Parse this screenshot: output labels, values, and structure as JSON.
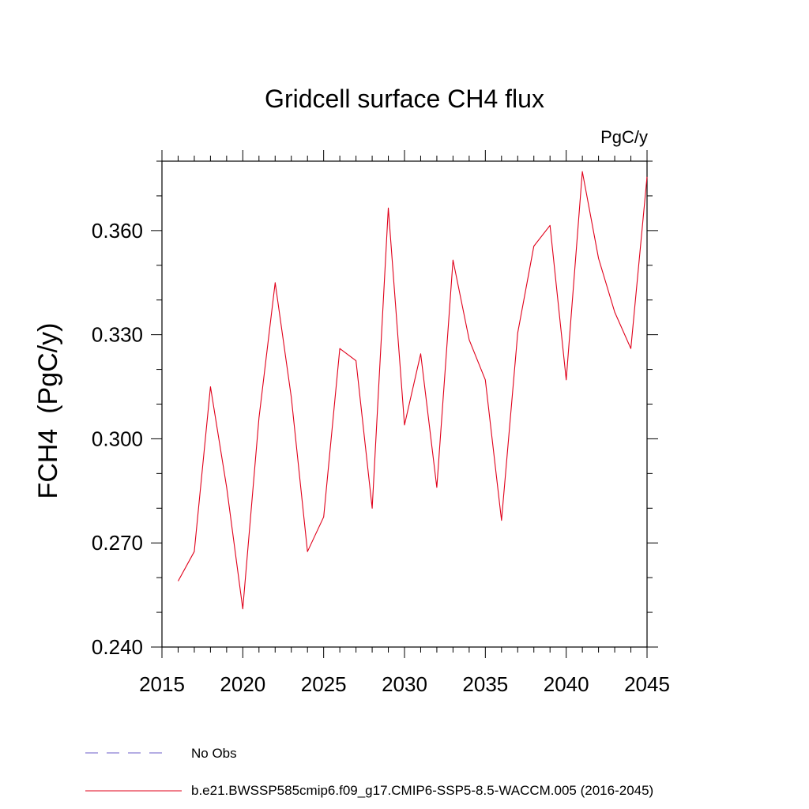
{
  "chart_data": {
    "type": "line",
    "title": "Gridcell surface CH4 flux",
    "units_label": "PgC/y",
    "ylabel": "FCH4  (PgC/y)",
    "xlabel": "",
    "xlim": [
      2015,
      2045
    ],
    "ylim": [
      0.24,
      0.38
    ],
    "x_ticks": [
      2015,
      2020,
      2025,
      2030,
      2035,
      2040,
      2045
    ],
    "x_tick_labels": [
      "2015",
      "2020",
      "2025",
      "2030",
      "2035",
      "2040",
      "2045"
    ],
    "y_ticks": [
      0.24,
      0.27,
      0.3,
      0.33,
      0.36
    ],
    "y_tick_labels": [
      "0.240",
      "0.270",
      "0.300",
      "0.330",
      "0.360"
    ],
    "grid": false,
    "series": [
      {
        "name": "b.e21.BWSSP585cmip6.f09_g17.CMIP6-SSP5-8.5-WACCM.005 (2016-2045)",
        "color": "#e0001a",
        "x": [
          2016,
          2017,
          2018,
          2019,
          2020,
          2021,
          2022,
          2023,
          2024,
          2025,
          2026,
          2027,
          2028,
          2029,
          2030,
          2031,
          2032,
          2033,
          2034,
          2035,
          2036,
          2037,
          2038,
          2039,
          2040,
          2041,
          2042,
          2043,
          2044,
          2045
        ],
        "values": [
          0.259,
          0.2675,
          0.315,
          0.286,
          0.251,
          0.306,
          0.345,
          0.312,
          0.2675,
          0.2775,
          0.326,
          0.3225,
          0.28,
          0.3665,
          0.304,
          0.3245,
          0.286,
          0.3515,
          0.3285,
          0.317,
          0.2765,
          0.3305,
          0.3555,
          0.3615,
          0.317,
          0.377,
          0.352,
          0.3365,
          0.326,
          0.3755
        ]
      }
    ],
    "legend": [
      {
        "label": "No Obs",
        "style": "dashed",
        "color": "#6b5cc8"
      },
      {
        "label": "b.e21.BWSSP585cmip6.f09_g17.CMIP6-SSP5-8.5-WACCM.005 (2016-2045)",
        "style": "solid",
        "color": "#e0001a"
      }
    ],
    "legend_position": "bottom"
  }
}
